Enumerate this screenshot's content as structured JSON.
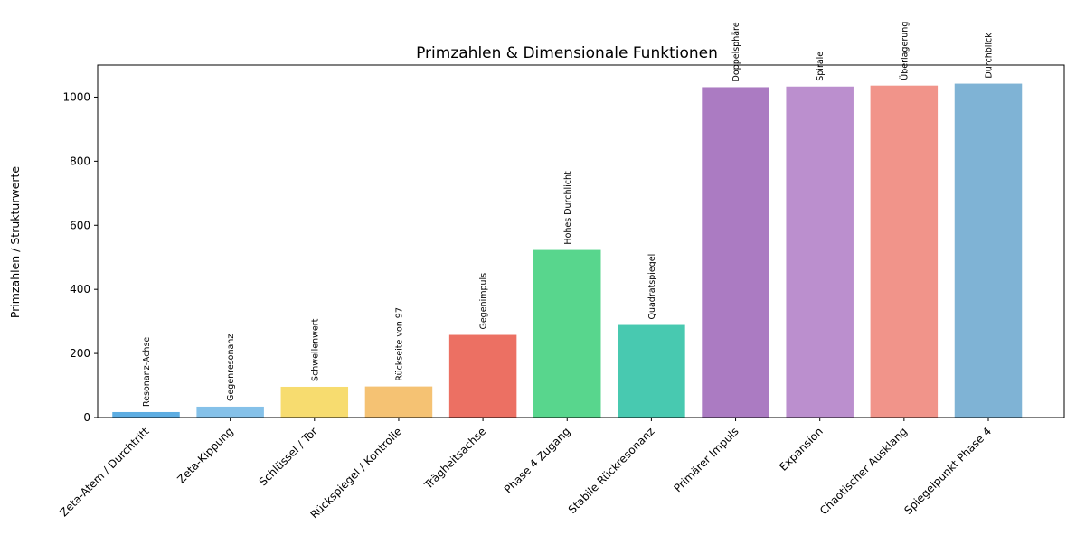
{
  "chart_data": {
    "type": "bar",
    "title": "Primzahlen & Dimensionale Funktionen",
    "xlabel": "",
    "ylabel": "Primzahlen / Strukturwerte",
    "ylim": [
      0,
      1100
    ],
    "yticks": [
      0,
      200,
      400,
      600,
      800,
      1000
    ],
    "grid": false,
    "categories": [
      "Zeta-Atem / Durchtritt",
      "Zeta-Kippung",
      "Schlüssel / Tor",
      "Rückspiegel / Kontrolle",
      "Trägheitsachse",
      "Phase 4 Zugang",
      "Stabile Rückresonanz",
      "Primärer Impuls",
      "Expansion",
      "Chaotischer Ausklang",
      "Spiegelpunkt Phase 4"
    ],
    "values": [
      17,
      34,
      96,
      97,
      258,
      523,
      289,
      1031,
      1033,
      1036,
      1042
    ],
    "annotations": [
      "Resonanz-Achse",
      "Gegenresonanz",
      "Schwellenwert",
      "Rückseite von 97",
      "Gegenimpuls",
      "Hohes Durchlicht",
      "Quadratspiegel",
      "Doppelsphäre",
      "Spirale",
      "Überlagerung",
      "Durchblick"
    ],
    "colors": [
      "#5dade2",
      "#85c1e9",
      "#f7dc6f",
      "#f5c273",
      "#ec7063",
      "#58d68d",
      "#48c9b0",
      "#ab7bc2",
      "#bb8fce",
      "#f1948a",
      "#7fb3d5"
    ]
  }
}
